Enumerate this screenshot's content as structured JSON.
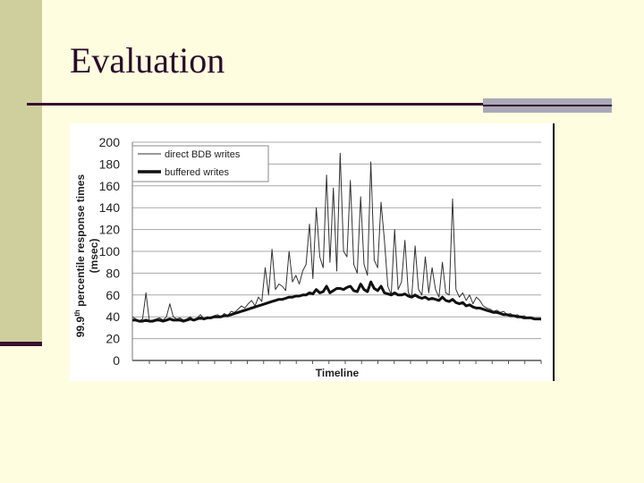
{
  "slide": {
    "title": "Evaluation"
  },
  "chart_data": {
    "type": "line",
    "ylabel_main": "99.9",
    "ylabel_sup": "th",
    "ylabel_rest": " percentile response times",
    "ylabel_unit": "(msec)",
    "xlabel": "Timeline",
    "ylim": [
      0,
      200
    ],
    "yticks": [
      "0",
      "20",
      "40",
      "60",
      "80",
      "100",
      "120",
      "140",
      "160",
      "180",
      "200"
    ],
    "grid": true,
    "legend_position": "top-left",
    "series": [
      {
        "name": "direct BDB writes",
        "color": "#333333",
        "values": [
          40,
          38,
          36,
          38,
          62,
          36,
          37,
          38,
          39,
          37,
          40,
          52,
          40,
          38,
          39,
          37,
          38,
          40,
          37,
          39,
          42,
          38,
          40,
          39,
          41,
          42,
          40,
          43,
          41,
          45,
          44,
          47,
          50,
          48,
          52,
          55,
          50,
          58,
          54,
          85,
          60,
          102,
          65,
          70,
          68,
          64,
          100,
          72,
          78,
          70,
          82,
          88,
          125,
          75,
          140,
          95,
          85,
          170,
          90,
          158,
          82,
          190,
          100,
          95,
          165,
          88,
          80,
          150,
          88,
          78,
          182,
          92,
          85,
          145,
          110,
          68,
          60,
          120,
          65,
          72,
          110,
          62,
          58,
          105,
          65,
          60,
          95,
          62,
          85,
          65,
          58,
          90,
          62,
          60,
          148,
          65,
          58,
          62,
          55,
          60,
          52,
          58,
          55,
          50,
          48,
          47,
          45,
          46,
          44,
          45,
          42,
          43,
          41,
          42,
          40,
          41,
          39,
          40,
          38,
          38,
          37
        ]
      },
      {
        "name": "buffered writes",
        "color": "#111111",
        "values": [
          37,
          37,
          36,
          36,
          37,
          36,
          36,
          37,
          37,
          36,
          37,
          38,
          37,
          37,
          37,
          36,
          37,
          38,
          37,
          38,
          39,
          38,
          39,
          39,
          40,
          40,
          40,
          41,
          41,
          42,
          43,
          44,
          45,
          46,
          47,
          48,
          49,
          50,
          51,
          52,
          53,
          54,
          55,
          56,
          56,
          57,
          58,
          58,
          59,
          59,
          60,
          60,
          62,
          61,
          65,
          62,
          63,
          68,
          62,
          64,
          66,
          66,
          65,
          67,
          68,
          64,
          63,
          70,
          65,
          63,
          72,
          66,
          64,
          68,
          62,
          61,
          60,
          62,
          60,
          60,
          61,
          59,
          58,
          60,
          58,
          57,
          58,
          56,
          57,
          56,
          55,
          58,
          55,
          54,
          56,
          53,
          52,
          53,
          50,
          51,
          49,
          48,
          48,
          47,
          46,
          45,
          44,
          44,
          43,
          42,
          42,
          41,
          41,
          40,
          40,
          39,
          39,
          39,
          38,
          38,
          38
        ]
      }
    ]
  }
}
